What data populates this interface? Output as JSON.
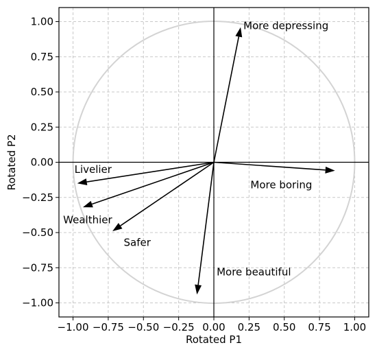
{
  "chart_data": {
    "type": "vector-plot",
    "xlabel": "Rotated P1",
    "ylabel": "Rotated P2",
    "xlim": [
      -1.1,
      1.1
    ],
    "ylim": [
      -1.1,
      1.1
    ],
    "xticks": [
      -1.0,
      -0.75,
      -0.5,
      -0.25,
      0.0,
      0.25,
      0.5,
      0.75,
      1.0
    ],
    "yticks": [
      -1.0,
      -0.75,
      -0.5,
      -0.25,
      0.0,
      0.25,
      0.5,
      0.75,
      1.0
    ],
    "tick_labels_x": [
      "−1.00",
      "−0.75",
      "−0.50",
      "−0.25",
      "0.00",
      "0.25",
      "0.50",
      "0.75",
      "1.00"
    ],
    "tick_labels_y": [
      "−1.00",
      "−0.75",
      "−0.50",
      "−0.25",
      "0.00",
      "0.25",
      "0.50",
      "0.75",
      "1.00"
    ],
    "grid": true,
    "unit_circle": true,
    "colors": {
      "circle": "#d3d3d3",
      "grid": "#c8c8c8",
      "arrow": "#000000"
    },
    "vectors": [
      {
        "name": "More depressing",
        "x": 0.19,
        "y": 0.96,
        "label_x": 0.21,
        "label_y": 0.97
      },
      {
        "name": "More boring",
        "x": 0.86,
        "y": -0.06,
        "label_x": 0.26,
        "label_y": -0.16
      },
      {
        "name": "Livelier",
        "x": -0.97,
        "y": -0.15,
        "label_x": -0.99,
        "label_y": -0.05
      },
      {
        "name": "Wealthier",
        "x": -0.93,
        "y": -0.32,
        "label_x": -1.07,
        "label_y": -0.41
      },
      {
        "name": "Safer",
        "x": -0.72,
        "y": -0.49,
        "label_x": -0.64,
        "label_y": -0.57
      },
      {
        "name": "More beautiful",
        "x": -0.12,
        "y": -0.94,
        "label_x": 0.02,
        "label_y": -0.78
      }
    ]
  }
}
